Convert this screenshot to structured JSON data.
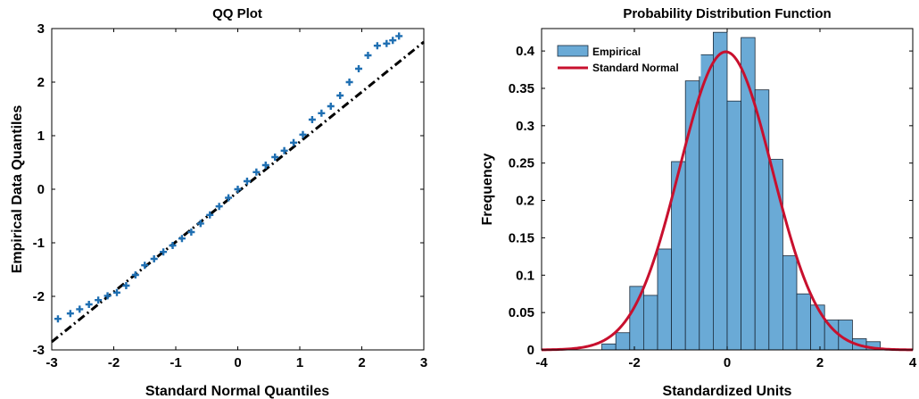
{
  "chart_data": [
    {
      "type": "scatter",
      "title": "QQ Plot",
      "xlabel": "Standard Normal Quantiles",
      "ylabel": "Empirical Data Quantiles",
      "xlim": [
        -3,
        3
      ],
      "ylim": [
        -3,
        3
      ],
      "xticks": [
        "-3",
        "-2",
        "-1",
        "0",
        "1",
        "2",
        "3"
      ],
      "yticks": [
        "-3",
        "-2",
        "-1",
        "0",
        "1",
        "2",
        "3"
      ],
      "grid": false,
      "marker": "+",
      "series": [
        {
          "x": [
            -2.9,
            -2.7,
            -2.55,
            -2.4,
            -2.25,
            -2.1,
            -1.95,
            -1.8,
            -1.65,
            -1.5,
            -1.35,
            -1.2,
            -1.05,
            -0.9,
            -0.75,
            -0.6,
            -0.45,
            -0.3,
            -0.15,
            0.0,
            0.15,
            0.3,
            0.45,
            0.6,
            0.75,
            0.9,
            1.05,
            1.2,
            1.35,
            1.5,
            1.65,
            1.8,
            1.95,
            2.1,
            2.25,
            2.4,
            2.5,
            2.6
          ],
          "y": [
            -2.42,
            -2.32,
            -2.24,
            -2.15,
            -2.07,
            -1.99,
            -1.93,
            -1.8,
            -1.6,
            -1.42,
            -1.3,
            -1.17,
            -1.05,
            -0.92,
            -0.8,
            -0.64,
            -0.48,
            -0.32,
            -0.16,
            0.0,
            0.15,
            0.32,
            0.45,
            0.6,
            0.72,
            0.87,
            1.02,
            1.3,
            1.42,
            1.55,
            1.75,
            2.0,
            2.25,
            2.5,
            2.68,
            2.72,
            2.78,
            2.86
          ]
        }
      ],
      "reference_line": {
        "x": [
          -3,
          3
        ],
        "y": [
          -2.85,
          2.75
        ],
        "style": "dash-dot"
      },
      "colors": {
        "markers": "#1f6fb2",
        "reference_line": "#000000"
      }
    },
    {
      "type": "bar",
      "title": "Probability Distribution Function",
      "xlabel": "Standardized Units",
      "ylabel": "Frequency",
      "xlim": [
        -4,
        4
      ],
      "ylim": [
        0,
        0.43
      ],
      "xticks": [
        "-4",
        "-2",
        "0",
        "2",
        "4"
      ],
      "yticks": [
        "0",
        "0.05",
        "0.1",
        "0.15",
        "0.2",
        "0.25",
        "0.3",
        "0.35",
        "0.4"
      ],
      "grid": false,
      "legend_position": "top-left",
      "bin_width": 0.3,
      "bin_starts": [
        -2.7,
        -2.4,
        -2.1,
        -1.8,
        -1.5,
        -1.2,
        -0.9,
        -0.6,
        -0.3,
        0.0,
        0.3,
        0.6,
        0.9,
        1.2,
        1.5,
        1.8,
        2.1,
        2.4,
        2.7,
        3.0
      ],
      "series": [
        {
          "name": "Empirical",
          "values": [
            0.008,
            0.023,
            0.085,
            0.073,
            0.135,
            0.252,
            0.36,
            0.395,
            0.425,
            0.333,
            0.418,
            0.348,
            0.255,
            0.126,
            0.075,
            0.06,
            0.04,
            0.04,
            0.015,
            0.011
          ]
        },
        {
          "name": "Standard Normal",
          "curve": "normal-pdf",
          "mean": -0.03,
          "sd": 1.0
        }
      ],
      "colors": {
        "bars": "#6aaad6",
        "bar_edge": "#1a2a3a",
        "curve": "#c8102e"
      }
    }
  ]
}
